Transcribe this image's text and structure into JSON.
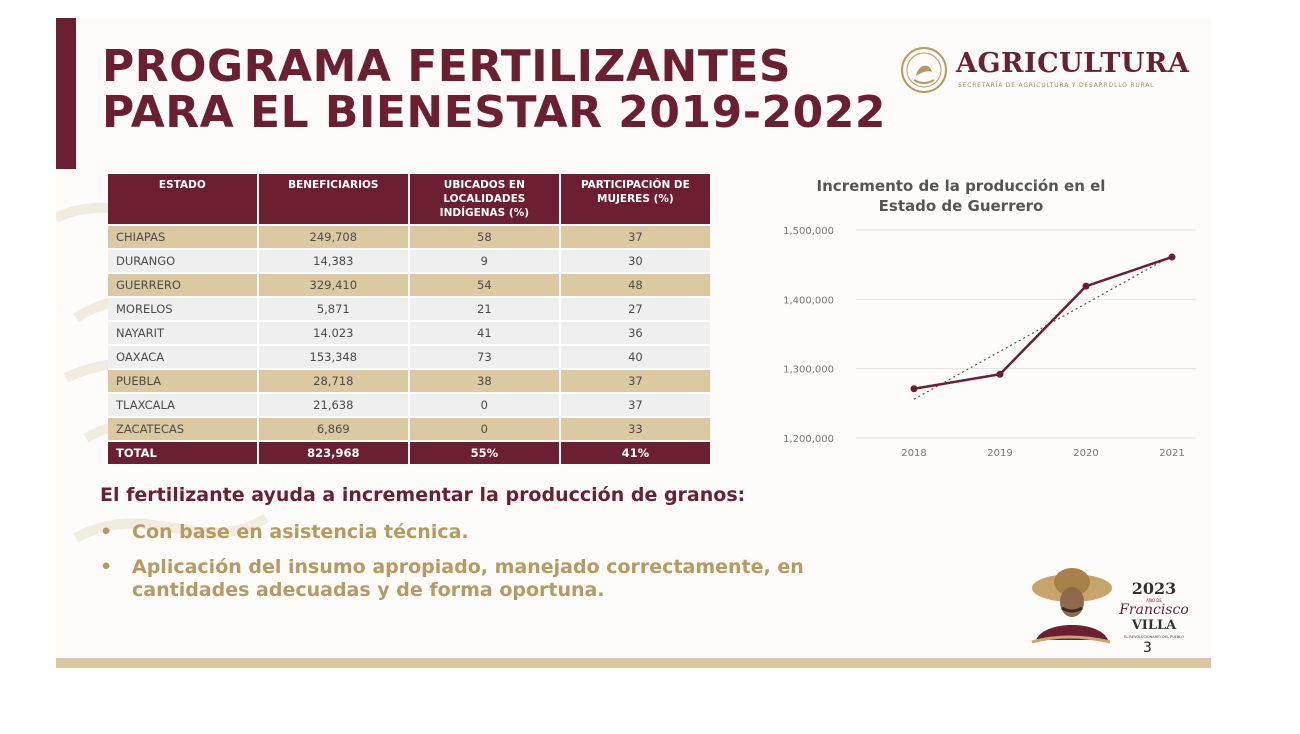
{
  "title": {
    "line1": "PROGRAMA FERTILIZANTES",
    "line2": "PARA EL BIENESTAR 2019-2022"
  },
  "logo": {
    "name": "AGRICULTURA",
    "subtitle": "SECRETARÍA DE AGRICULTURA Y DESARROLLO RURAL"
  },
  "table": {
    "headers": [
      "ESTADO",
      "BENEFICIARIOS",
      "UBICADOS EN LOCALIDADES INDÍGENAS (%)",
      "PARTICIPACIÓN DE MUJERES (%)"
    ],
    "rows": [
      [
        "CHIAPAS",
        "249,708",
        "58",
        "37"
      ],
      [
        "DURANGO",
        "14,383",
        "9",
        "30"
      ],
      [
        "GUERRERO",
        "329,410",
        "54",
        "48"
      ],
      [
        "MORELOS",
        "5,871",
        "21",
        "27"
      ],
      [
        "NAYARIT",
        "14.023",
        "41",
        "36"
      ],
      [
        "OAXACA",
        "153,348",
        "73",
        "40"
      ],
      [
        "PUEBLA",
        "28,718",
        "38",
        "37"
      ],
      [
        "TLAXCALA",
        "21,638",
        "0",
        "37"
      ],
      [
        "ZACATECAS",
        "6,869",
        "0",
        "33"
      ]
    ],
    "total": [
      "TOTAL",
      "823,968",
      "55%",
      "41%"
    ]
  },
  "chart_data": {
    "type": "line",
    "title": "Incremento de la producción en el Estado de Guerrero",
    "title_lines": [
      "Incremento de la producción en el",
      "Estado de Guerrero"
    ],
    "x": [
      "2018",
      "2019",
      "2020",
      "2021"
    ],
    "series": [
      {
        "values": [
          1271000,
          1292000,
          1419000,
          1461000
        ],
        "color": "#6b1f31"
      }
    ],
    "trendline": {
      "style": "dotted",
      "values": [
        1256000,
        1325000,
        1394000,
        1463000
      ]
    },
    "ylim": [
      1200000,
      1500000
    ],
    "yticks": [
      1200000,
      1300000,
      1400000,
      1500000
    ],
    "ytick_labels": [
      "1,200,000",
      "1,300,000",
      "1,400,000",
      "1,500,000"
    ],
    "grid": true,
    "xlabel": "",
    "ylabel": ""
  },
  "text": {
    "heading": "El fertilizante ayuda a incrementar la producción de granos:",
    "bullet_char": "•",
    "bullets": [
      "Con base en asistencia técnica.",
      "Aplicación del insumo apropiado, manejado correctamente, en cantidades adecuadas y de forma oportuna."
    ]
  },
  "villa_logo": {
    "year": "2023",
    "small": "AÑO DE",
    "name1": "Francisco",
    "name2": "VILLA",
    "motto": "EL REVOLUCIONARIO DEL PUEBLO"
  },
  "page_number": "3",
  "colors": {
    "primary": "#6b1f31",
    "gold": "#ddc9a0",
    "gold_text": "#b79a62",
    "light_row": "#efefef"
  }
}
